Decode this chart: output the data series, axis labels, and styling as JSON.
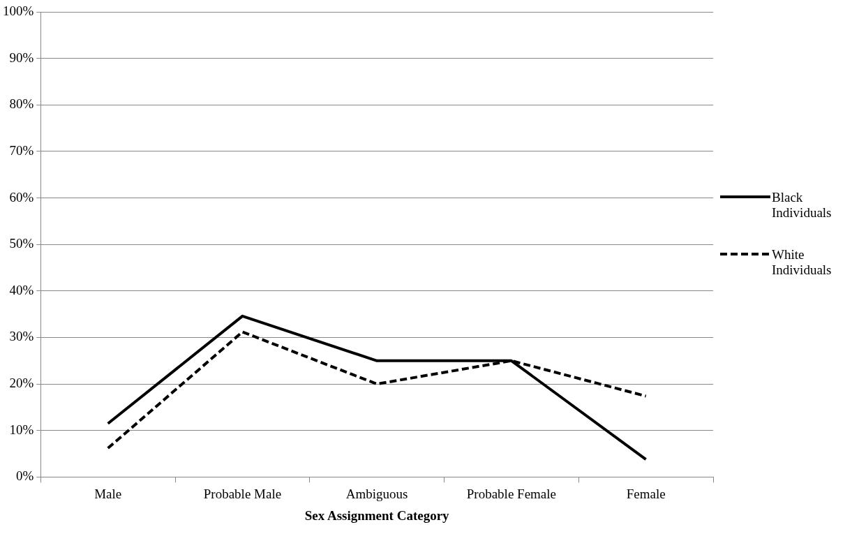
{
  "chart_data": {
    "type": "line",
    "xlabel": "Sex Assignment Category",
    "categories": [
      "Male",
      "Probable Male",
      "Ambiguous",
      "Probable Female",
      "Female"
    ],
    "series": [
      {
        "name": "Black Individuals",
        "color": "#000000",
        "line_style": "solid",
        "values": [
          11.5,
          34.6,
          25,
          25,
          3.8
        ]
      },
      {
        "name": "White Individuals",
        "color": "#000000",
        "line_style": "dashed",
        "values": [
          6.2,
          31.2,
          20,
          25,
          17.4
        ]
      }
    ],
    "ylim": [
      0,
      100
    ],
    "yticks": [
      {
        "value": 0,
        "label": "0%"
      },
      {
        "value": 10,
        "label": "10%"
      },
      {
        "value": 20,
        "label": "20%"
      },
      {
        "value": 30,
        "label": "30%"
      },
      {
        "value": 40,
        "label": "40%"
      },
      {
        "value": 50,
        "label": "50%"
      },
      {
        "value": 60,
        "label": "60%"
      },
      {
        "value": 70,
        "label": "70%"
      },
      {
        "value": 80,
        "label": "80%"
      },
      {
        "value": 90,
        "label": "90%"
      },
      {
        "value": 100,
        "label": "100%"
      }
    ],
    "grid": "y",
    "legend": "right",
    "marker": "none"
  }
}
